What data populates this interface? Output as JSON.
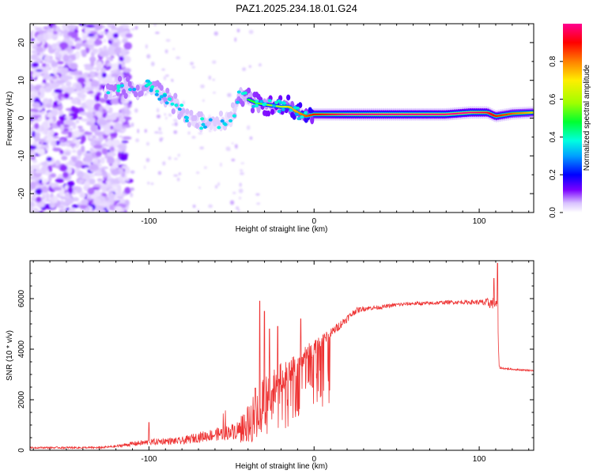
{
  "chart_data": [
    {
      "type": "heatmap",
      "title": "PAZ1.2025.234.18.01.G24",
      "xlabel": "Height of straight line (km)",
      "ylabel": "Frequency (Hz)",
      "xlim": [
        -172,
        133
      ],
      "ylim": [
        -25,
        25
      ],
      "x_ticks": [
        -100,
        0,
        100
      ],
      "y_ticks": [
        -20,
        -10,
        0,
        10,
        20
      ],
      "colorbar": {
        "label": "Normalized spectral amplitude",
        "range": [
          0,
          1
        ],
        "ticks": [
          0.0,
          0.2,
          0.4,
          0.6,
          0.8
        ],
        "colors": [
          "#ffffff",
          "#d9c2ff",
          "#7a00ff",
          "#0000ff",
          "#00a0ff",
          "#00ffe0",
          "#00ff30",
          "#a0ff00",
          "#ffee00",
          "#ff8000",
          "#ff0000",
          "#ff0090"
        ]
      },
      "ridge": {
        "x": [
          -125,
          -115,
          -105,
          -100,
          -93,
          -85,
          -78,
          -72,
          -65,
          -60,
          -55,
          -50,
          -45,
          -40,
          -35,
          -28,
          -20,
          -15,
          -10,
          -5,
          0,
          10,
          20,
          40,
          60,
          80,
          95,
          105,
          110,
          120,
          133
        ],
        "y": [
          7,
          8.5,
          7,
          9,
          6,
          4,
          1,
          -1,
          -1.5,
          -2,
          -1,
          0,
          6,
          5,
          4,
          3.5,
          3,
          3,
          1.5,
          0.5,
          1,
          1,
          1,
          1,
          1,
          1,
          1.5,
          1.5,
          0.5,
          1.2,
          1.5
        ],
        "amplitude": [
          0.35,
          0.4,
          0.35,
          0.3,
          0.35,
          0.3,
          0.25,
          0.25,
          0.25,
          0.2,
          0.2,
          0.2,
          0.4,
          0.45,
          0.5,
          0.55,
          0.6,
          0.7,
          0.75,
          0.8,
          0.85,
          0.9,
          0.95,
          1.0,
          1.0,
          1.0,
          0.95,
          0.9,
          0.85,
          0.8,
          0.7
        ]
      }
    },
    {
      "type": "line",
      "xlabel": "Height of straight line (km)",
      "ylabel": "SNR (10 * v/v)",
      "xlim": [
        -172,
        133
      ],
      "ylim": [
        0,
        7500
      ],
      "x_ticks": [
        -100,
        0,
        100
      ],
      "y_ticks": [
        0,
        2000,
        4000,
        6000
      ],
      "color": "#ee3333",
      "envelope": {
        "x": [
          -172,
          -150,
          -130,
          -120,
          -110,
          -100,
          -90,
          -80,
          -70,
          -60,
          -50,
          -45,
          -40,
          -35,
          -30,
          -25,
          -20,
          -15,
          -10,
          -5,
          0,
          5,
          10,
          15,
          20,
          25,
          30,
          40,
          50,
          60,
          70,
          80,
          90,
          100,
          105,
          110,
          111,
          112,
          113,
          120,
          133
        ],
        "base": [
          100,
          100,
          100,
          150,
          250,
          300,
          350,
          350,
          500,
          600,
          700,
          800,
          900,
          1400,
          2000,
          2400,
          2800,
          3000,
          3400,
          3800,
          4000,
          4300,
          4600,
          4900,
          5200,
          5500,
          5600,
          5650,
          5750,
          5800,
          5800,
          5850,
          5850,
          5850,
          5800,
          5800,
          5700,
          3300,
          3250,
          3200,
          3150
        ],
        "spread": [
          60,
          80,
          80,
          100,
          180,
          250,
          250,
          300,
          400,
          500,
          600,
          800,
          1600,
          2200,
          2000,
          1600,
          1200,
          1000,
          900,
          700,
          600,
          500,
          400,
          350,
          300,
          250,
          200,
          150,
          150,
          150,
          150,
          150,
          150,
          200,
          400,
          500,
          300,
          100,
          80,
          60,
          60
        ]
      },
      "peaks": [
        {
          "x": -100,
          "y": 1100
        },
        {
          "x": -33,
          "y": 5900
        },
        {
          "x": -30,
          "y": 5500
        },
        {
          "x": -27,
          "y": 4800
        },
        {
          "x": -22,
          "y": 4900
        },
        {
          "x": -8,
          "y": 5200
        },
        {
          "x": 111,
          "y": 7400
        },
        {
          "x": 109,
          "y": 6800
        }
      ]
    }
  ]
}
